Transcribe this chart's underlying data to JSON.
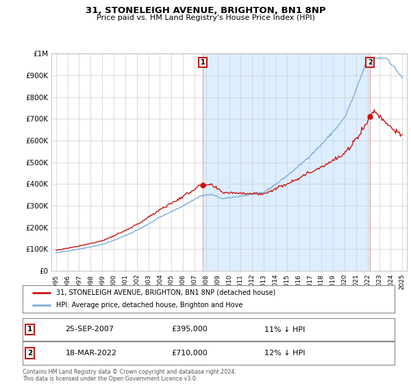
{
  "title": "31, STONELEIGH AVENUE, BRIGHTON, BN1 8NP",
  "subtitle": "Price paid vs. HM Land Registry's House Price Index (HPI)",
  "ylim": [
    0,
    1000000
  ],
  "yticks": [
    0,
    100000,
    200000,
    300000,
    400000,
    500000,
    600000,
    700000,
    800000,
    900000,
    1000000
  ],
  "ytick_labels": [
    "£0",
    "£100K",
    "£200K",
    "£300K",
    "£400K",
    "£500K",
    "£600K",
    "£700K",
    "£800K",
    "£900K",
    "£1M"
  ],
  "hpi_color": "#7aabdc",
  "price_color": "#cc1111",
  "vline_color": "#dd3333",
  "fill_color": "#ddeeff",
  "purchase1_date": 2007.73,
  "purchase1_price": 395000,
  "purchase1_label": "1",
  "purchase1_display": "25-SEP-2007",
  "purchase1_amount": "£395,000",
  "purchase1_pct": "11%",
  "purchase2_date": 2022.21,
  "purchase2_price": 710000,
  "purchase2_label": "2",
  "purchase2_display": "18-MAR-2022",
  "purchase2_amount": "£710,000",
  "purchase2_pct": "12%",
  "legend_property": "31, STONELEIGH AVENUE, BRIGHTON, BN1 8NP (detached house)",
  "legend_hpi": "HPI: Average price, detached house, Brighton and Hove",
  "footnote": "Contains HM Land Registry data © Crown copyright and database right 2024.\nThis data is licensed under the Open Government Licence v3.0.",
  "background_color": "#ffffff",
  "grid_color": "#cccccc"
}
